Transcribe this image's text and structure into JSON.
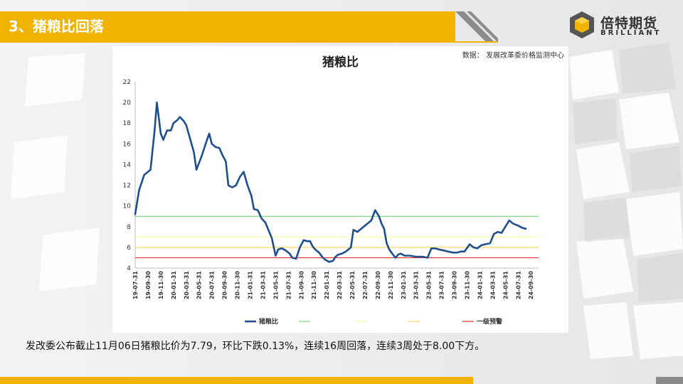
{
  "header": {
    "title": "3、猪粮比回落"
  },
  "logo": {
    "cn": "倍特期货",
    "en": "BRILLIANT"
  },
  "chart_data": {
    "type": "line",
    "title": "猪粮比",
    "source": "数据： 发展改革委价格监测中心",
    "ylim": [
      4,
      22
    ],
    "yticks": [
      "4",
      "6",
      "8",
      "10",
      "12",
      "14",
      "16",
      "18",
      "20",
      "22"
    ],
    "x_tick_labels": [
      "19-07-31",
      "19-09-30",
      "19-11-30",
      "20-01-31",
      "20-03-31",
      "20-05-31",
      "20-07-31",
      "20-09-30",
      "20-11-30",
      "21-01-31",
      "21-03-31",
      "21-05-31",
      "21-07-31",
      "21-09-30",
      "21-11-30",
      "22-01-31",
      "22-03-31",
      "22-05-31",
      "22-07-31",
      "22-09-30",
      "22-11-30",
      "23-01-31",
      "23-03-31",
      "23-05-31",
      "23-07-31",
      "23-09-30",
      "23-11-30",
      "24-01-31",
      "24-03-31",
      "24-05-31",
      "24-07-31",
      "24-09-30"
    ],
    "grid": "none",
    "legend_position": "bottom",
    "series": [
      {
        "name": "猪粮比",
        "color": "#1f4e8c",
        "points": [
          [
            0,
            9.2
          ],
          [
            0.3,
            11.5
          ],
          [
            0.7,
            13.0
          ],
          [
            1.2,
            13.5
          ],
          [
            1.5,
            17.0
          ],
          [
            1.7,
            20.0
          ],
          [
            2.0,
            17.0
          ],
          [
            2.2,
            16.4
          ],
          [
            2.5,
            17.3
          ],
          [
            2.8,
            17.3
          ],
          [
            3.0,
            18.0
          ],
          [
            3.3,
            18.3
          ],
          [
            3.5,
            18.6
          ],
          [
            3.8,
            18.2
          ],
          [
            4.0,
            17.8
          ],
          [
            4.3,
            16.5
          ],
          [
            4.6,
            15.2
          ],
          [
            4.8,
            13.5
          ],
          [
            5.2,
            14.8
          ],
          [
            5.6,
            16.3
          ],
          [
            5.8,
            17.0
          ],
          [
            6.0,
            16.0
          ],
          [
            6.3,
            15.7
          ],
          [
            6.6,
            15.6
          ],
          [
            6.8,
            15.0
          ],
          [
            7.1,
            14.3
          ],
          [
            7.3,
            12.0
          ],
          [
            7.6,
            11.8
          ],
          [
            7.9,
            12.0
          ],
          [
            8.2,
            12.8
          ],
          [
            8.5,
            13.3
          ],
          [
            8.8,
            12.0
          ],
          [
            9.1,
            11.0
          ],
          [
            9.3,
            9.7
          ],
          [
            9.6,
            9.6
          ],
          [
            9.9,
            8.8
          ],
          [
            10.2,
            8.4
          ],
          [
            10.4,
            7.8
          ],
          [
            10.7,
            6.9
          ],
          [
            11.0,
            5.2
          ],
          [
            11.2,
            5.8
          ],
          [
            11.5,
            5.9
          ],
          [
            11.8,
            5.7
          ],
          [
            12.1,
            5.4
          ],
          [
            12.3,
            5.0
          ],
          [
            12.6,
            4.9
          ],
          [
            12.9,
            6.0
          ],
          [
            13.2,
            6.7
          ],
          [
            13.5,
            6.6
          ],
          [
            13.7,
            6.6
          ],
          [
            13.9,
            6.1
          ],
          [
            14.1,
            5.8
          ],
          [
            14.4,
            5.5
          ],
          [
            14.7,
            5.0
          ],
          [
            14.9,
            4.8
          ],
          [
            15.2,
            4.6
          ],
          [
            15.5,
            4.7
          ],
          [
            15.7,
            5.1
          ],
          [
            15.9,
            5.3
          ],
          [
            16.2,
            5.4
          ],
          [
            16.5,
            5.6
          ],
          [
            16.9,
            6.0
          ],
          [
            17.1,
            7.7
          ],
          [
            17.4,
            7.5
          ],
          [
            17.7,
            7.8
          ],
          [
            17.9,
            8.0
          ],
          [
            18.2,
            8.3
          ],
          [
            18.5,
            8.6
          ],
          [
            18.8,
            9.6
          ],
          [
            19.1,
            9.0
          ],
          [
            19.3,
            8.3
          ],
          [
            19.5,
            7.8
          ],
          [
            19.7,
            6.4
          ],
          [
            19.9,
            5.8
          ],
          [
            20.2,
            5.3
          ],
          [
            20.4,
            5.0
          ],
          [
            20.6,
            5.3
          ],
          [
            20.8,
            5.4
          ],
          [
            21.1,
            5.2
          ],
          [
            21.5,
            5.2
          ],
          [
            22.0,
            5.1
          ],
          [
            22.5,
            5.1
          ],
          [
            22.9,
            5.0
          ],
          [
            23.2,
            5.9
          ],
          [
            23.5,
            5.9
          ],
          [
            23.8,
            5.8
          ],
          [
            24.2,
            5.7
          ],
          [
            24.5,
            5.6
          ],
          [
            24.9,
            5.5
          ],
          [
            25.2,
            5.5
          ],
          [
            25.5,
            5.6
          ],
          [
            25.8,
            5.6
          ],
          [
            26.2,
            6.3
          ],
          [
            26.5,
            6.0
          ],
          [
            26.8,
            5.9
          ],
          [
            27.1,
            6.2
          ],
          [
            27.4,
            6.3
          ],
          [
            27.8,
            6.4
          ],
          [
            28.1,
            7.3
          ],
          [
            28.4,
            7.5
          ],
          [
            28.7,
            7.4
          ],
          [
            29.0,
            8.0
          ],
          [
            29.3,
            8.6
          ],
          [
            29.6,
            8.3
          ],
          [
            30.0,
            8.1
          ],
          [
            30.3,
            7.9
          ],
          [
            30.6,
            7.8
          ]
        ]
      },
      {
        "name": "",
        "color": "#7fd47f",
        "value": 9.0
      },
      {
        "name": "",
        "color": "#ffff9a",
        "value": 7.0
      },
      {
        "name": "",
        "color": "#f5d76e",
        "value": 6.0
      },
      {
        "name": "一级预警",
        "color": "#e03030",
        "value": 5.0
      }
    ]
  },
  "footer": {
    "note": "发改委公布截止11月06日猪粮比价为7.79，环比下跌0.13%，连续16周回落，连续3周处于8.00下方。"
  }
}
